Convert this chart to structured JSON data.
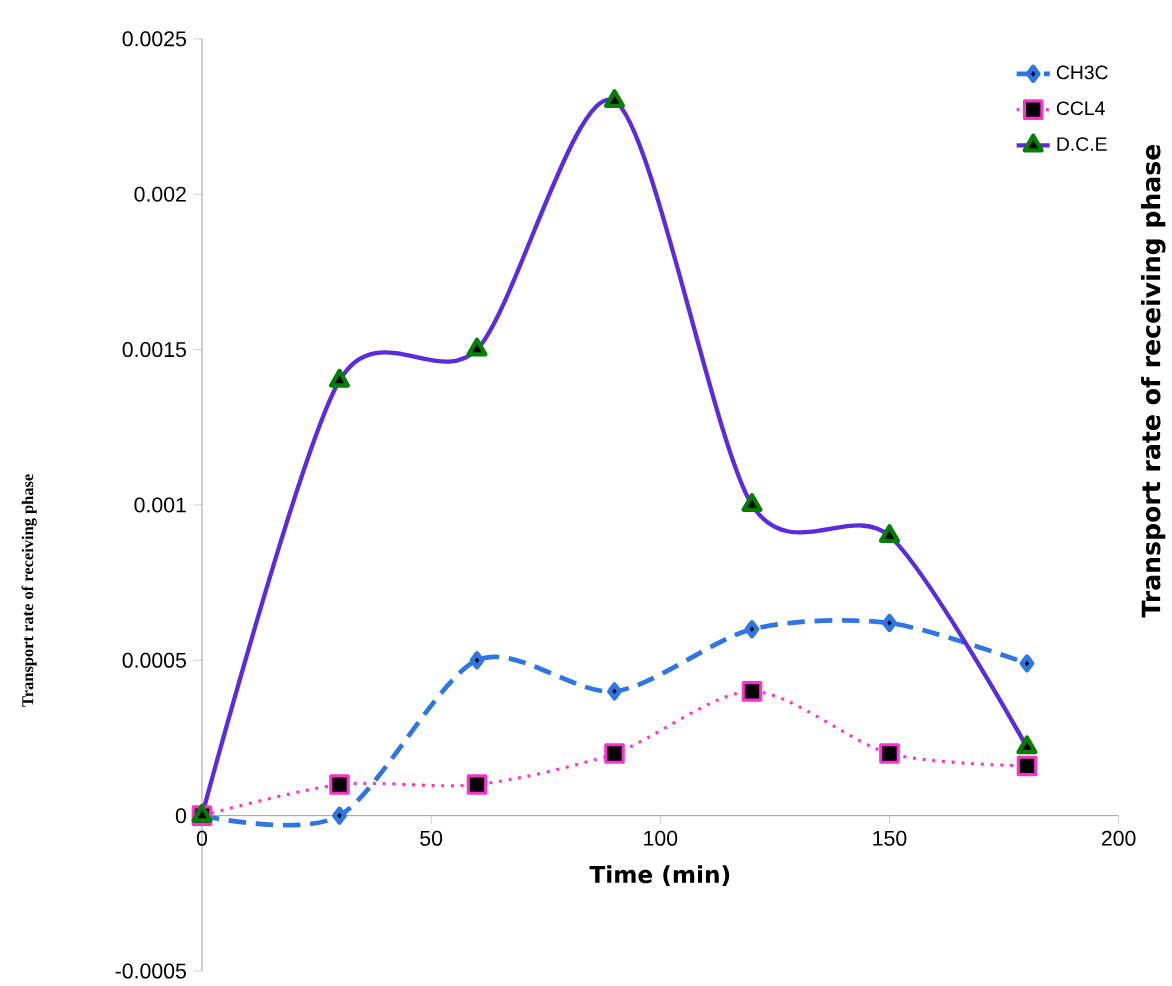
{
  "chart_data": {
    "type": "line",
    "xlabel": "Time (min)",
    "ylabel": "Transport rate of receiving phase",
    "y2label": "Transport rate of receiving phase",
    "x": [
      0,
      30,
      60,
      90,
      120,
      150,
      180
    ],
    "series": [
      {
        "name": "CH3C",
        "color": "#2e75e6",
        "line_style": "dashed",
        "marker": "diamond",
        "values": [
          0,
          0,
          0.0005,
          0.0004,
          0.0006,
          0.00062,
          0.00049
        ]
      },
      {
        "name": "CCL4",
        "color": "#ff33cc",
        "line_style": "dotted",
        "marker": "square",
        "values": [
          0,
          0.0001,
          0.0001,
          0.0002,
          0.0004,
          0.0002,
          0.00016
        ]
      },
      {
        "name": "D.C.E",
        "color": "#5b2be0",
        "line_style": "solid",
        "marker": "triangle",
        "values": [
          0,
          0.0014,
          0.0015,
          0.0023,
          0.001,
          0.0009,
          0.00022
        ]
      }
    ],
    "xlim": [
      0,
      200
    ],
    "xticks": [
      0,
      50,
      100,
      150,
      200
    ],
    "ylim": [
      -0.0005,
      0.0025
    ],
    "yticks": [
      -0.0005,
      0,
      0.0005,
      0.001,
      0.0015,
      0.002,
      0.0025
    ],
    "grid": false,
    "legend": "top right"
  }
}
